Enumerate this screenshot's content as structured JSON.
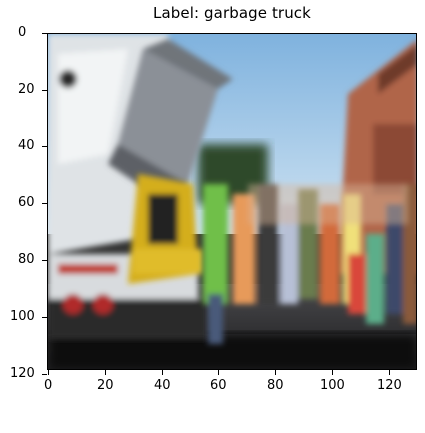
{
  "figure": {
    "title": "Label: garbage truck"
  },
  "axes": {
    "x_ticks": [
      "0",
      "20",
      "40",
      "60",
      "80",
      "100",
      "120"
    ],
    "y_ticks": [
      "0",
      "20",
      "40",
      "60",
      "80",
      "100",
      "120"
    ],
    "extent": [
      0,
      128
    ]
  },
  "image": {
    "subject": "people standing beside garbage truck lifting a bin",
    "colors": {
      "sky": "#9ec8e6",
      "truck_white": "#e8ecef",
      "bin_gray": "#8a8f96",
      "lift_yellow": "#d9b21f",
      "brick": "#b86a4e",
      "ground": "#3a3a3c",
      "shadow": "#0d0d0f"
    }
  }
}
